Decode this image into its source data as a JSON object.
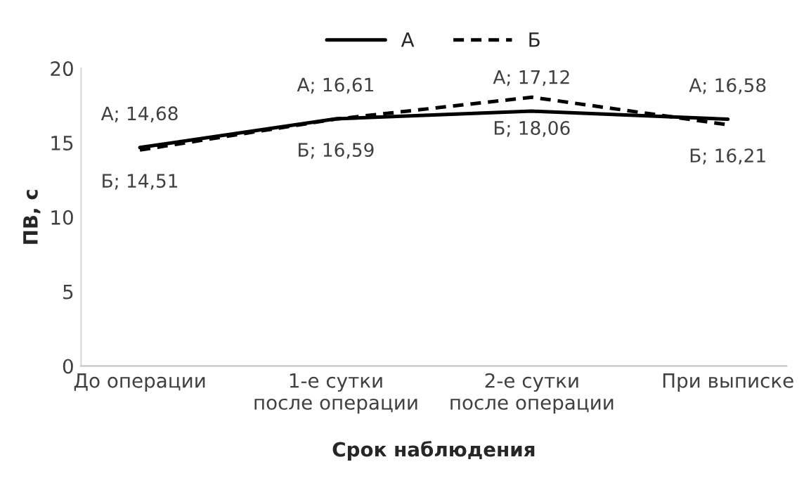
{
  "chart_data": {
    "type": "line",
    "xlabel": "Срок наблюдения",
    "ylabel": "ПВ, с",
    "categories": [
      "До операции",
      "1-е сутки\nпосле операции",
      "2-е сутки\nпосле операции",
      "При выписке"
    ],
    "series": [
      {
        "name": "А",
        "color": "#000000",
        "line_style": "solid",
        "values": [
          14.68,
          16.61,
          17.12,
          16.58
        ],
        "value_labels": [
          "А; 14,68",
          "А; 16,61",
          "А; 17,12",
          "А; 16,58"
        ]
      },
      {
        "name": "Б",
        "color": "#000000",
        "line_style": "dashed",
        "values": [
          14.51,
          16.59,
          18.06,
          16.21
        ],
        "value_labels": [
          "Б; 14,51",
          "Б; 16,59",
          "Б; 18,06",
          "Б; 16,21"
        ]
      }
    ],
    "ylim": [
      0,
      20
    ],
    "yticks": [
      0,
      5,
      10,
      15,
      20
    ],
    "grid": false,
    "legend": "top",
    "marker": "none"
  }
}
